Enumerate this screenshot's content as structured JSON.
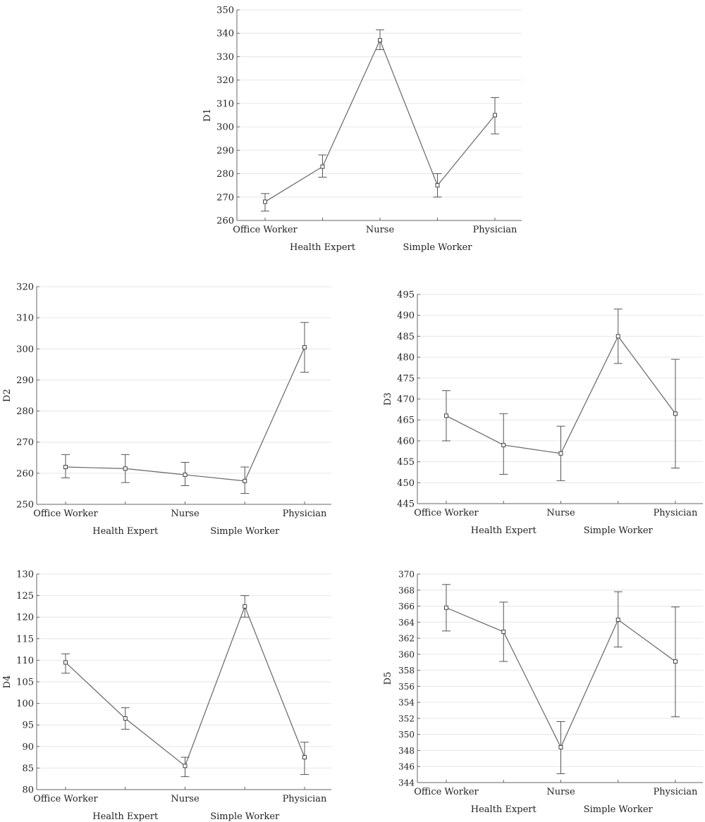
{
  "chart_data": [
    {
      "type": "line",
      "id": "d1",
      "ylabel": "D1",
      "categories": [
        "Office Worker",
        "Health Expert",
        "Nurse",
        "Simple Worker",
        "Physician"
      ],
      "values": [
        268,
        283,
        337,
        275,
        305
      ],
      "error_low": [
        264,
        278.5,
        333,
        270,
        297
      ],
      "error_high": [
        271.5,
        288,
        341.5,
        280,
        312.5
      ],
      "ylim": [
        260,
        350
      ],
      "yticks": [
        260,
        270,
        280,
        290,
        300,
        310,
        320,
        330,
        340,
        350
      ],
      "grid": true
    },
    {
      "type": "line",
      "id": "d2",
      "ylabel": "D2",
      "categories": [
        "Office Worker",
        "Health Expert",
        "Nurse",
        "Simple Worker",
        "Physician"
      ],
      "values": [
        262,
        261.5,
        259.5,
        257.5,
        300.5
      ],
      "error_low": [
        258.5,
        257,
        256,
        253.5,
        292.5
      ],
      "error_high": [
        266,
        266,
        263.5,
        262,
        308.5
      ],
      "ylim": [
        250,
        320
      ],
      "yticks": [
        250,
        260,
        270,
        280,
        290,
        300,
        310,
        320
      ],
      "grid": true
    },
    {
      "type": "line",
      "id": "d3",
      "ylabel": "D3",
      "categories": [
        "Office Worker",
        "Health Expert",
        "Nurse",
        "Simple Worker",
        "Physician"
      ],
      "values": [
        466,
        459,
        457,
        485,
        466.5
      ],
      "error_low": [
        460,
        452,
        450.5,
        478.5,
        453.5
      ],
      "error_high": [
        472,
        466.5,
        463.5,
        491.5,
        479.5
      ],
      "ylim": [
        445,
        495
      ],
      "yticks": [
        445,
        450,
        455,
        460,
        465,
        470,
        475,
        480,
        485,
        490,
        495
      ],
      "grid": true
    },
    {
      "type": "line",
      "id": "d4",
      "ylabel": "D4",
      "categories": [
        "Office Worker",
        "Health Expert",
        "Nurse",
        "Simple Worker",
        "Physician"
      ],
      "values": [
        109.5,
        96.5,
        85.5,
        122.5,
        87.5
      ],
      "error_low": [
        107,
        94,
        83,
        120,
        83.5
      ],
      "error_high": [
        111.5,
        99,
        87.5,
        125,
        91
      ],
      "ylim": [
        80,
        130
      ],
      "yticks": [
        80,
        85,
        90,
        95,
        100,
        105,
        110,
        115,
        120,
        125,
        130
      ],
      "grid": true
    },
    {
      "type": "line",
      "id": "d5",
      "ylabel": "D5",
      "categories": [
        "Office Worker",
        "Health Expert",
        "Nurse",
        "Simple Worker",
        "Physician"
      ],
      "values": [
        365.8,
        362.8,
        348.4,
        364.3,
        359.1
      ],
      "error_low": [
        362.9,
        359.1,
        345.1,
        360.9,
        352.2
      ],
      "error_high": [
        368.7,
        366.5,
        351.6,
        367.8,
        365.9
      ],
      "ylim": [
        344,
        370
      ],
      "yticks": [
        344,
        346,
        348,
        350,
        352,
        354,
        356,
        358,
        360,
        362,
        364,
        366,
        368,
        370
      ],
      "grid": true
    }
  ]
}
